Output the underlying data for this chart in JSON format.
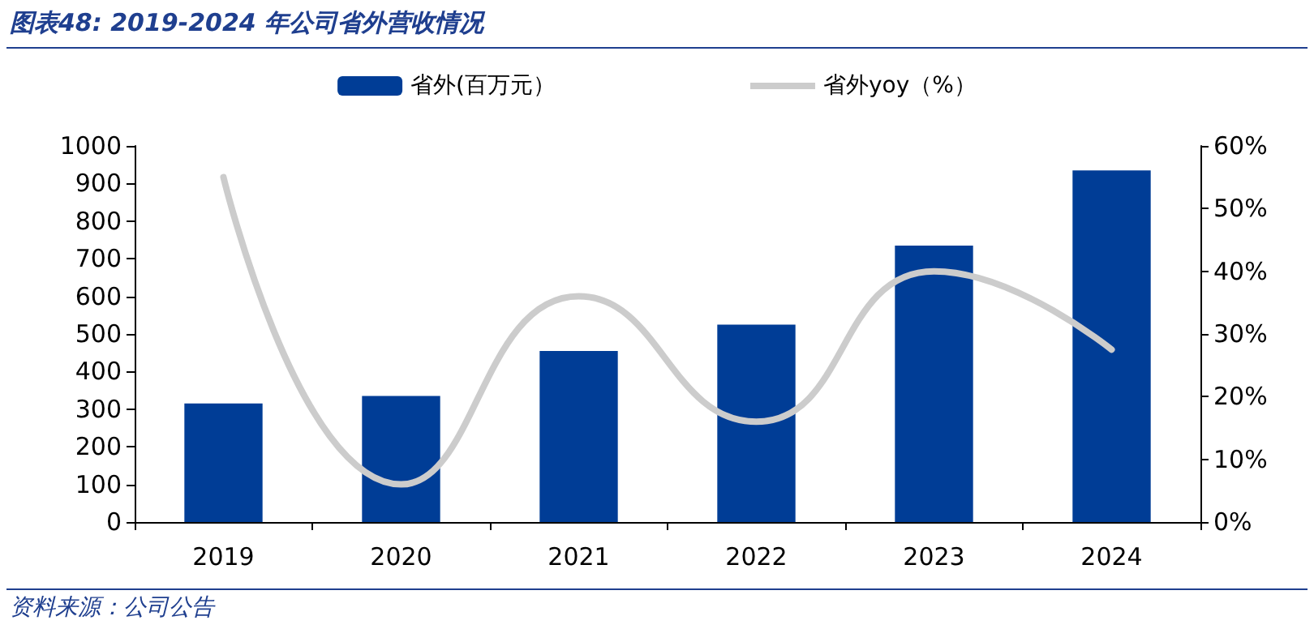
{
  "chart_data": {
    "type": "bar",
    "title": "图表48:  2019-2024 年公司省外营收情况",
    "annotations": [
      "资料来源：公司公告"
    ],
    "categories": [
      "2019",
      "2020",
      "2021",
      "2022",
      "2023",
      "2024"
    ],
    "series": [
      {
        "name": "省外(百万元）",
        "color": "#003d96",
        "values": [
          315,
          335,
          455,
          525,
          735,
          935
        ]
      },
      {
        "name": "省外yoy（%）",
        "type": "line",
        "axis": "y2",
        "color": "#cccccc",
        "marker": "none",
        "values": [
          55,
          6,
          36,
          16,
          40,
          27.5
        ]
      }
    ],
    "ylim": [
      0,
      1000
    ],
    "yticks": [
      0,
      100,
      200,
      300,
      400,
      500,
      600,
      700,
      800,
      900,
      1000
    ],
    "y2lim": [
      0,
      60
    ],
    "y2ticks": [
      {
        "value": 0,
        "label": "0%"
      },
      {
        "value": 10,
        "label": "10%"
      },
      {
        "value": 20,
        "label": "20%"
      },
      {
        "value": 30,
        "label": "30%"
      },
      {
        "value": 40,
        "label": "40%"
      },
      {
        "value": 50,
        "label": "50%"
      },
      {
        "value": 60,
        "label": "60%"
      }
    ],
    "grid": false,
    "legend": "top"
  }
}
